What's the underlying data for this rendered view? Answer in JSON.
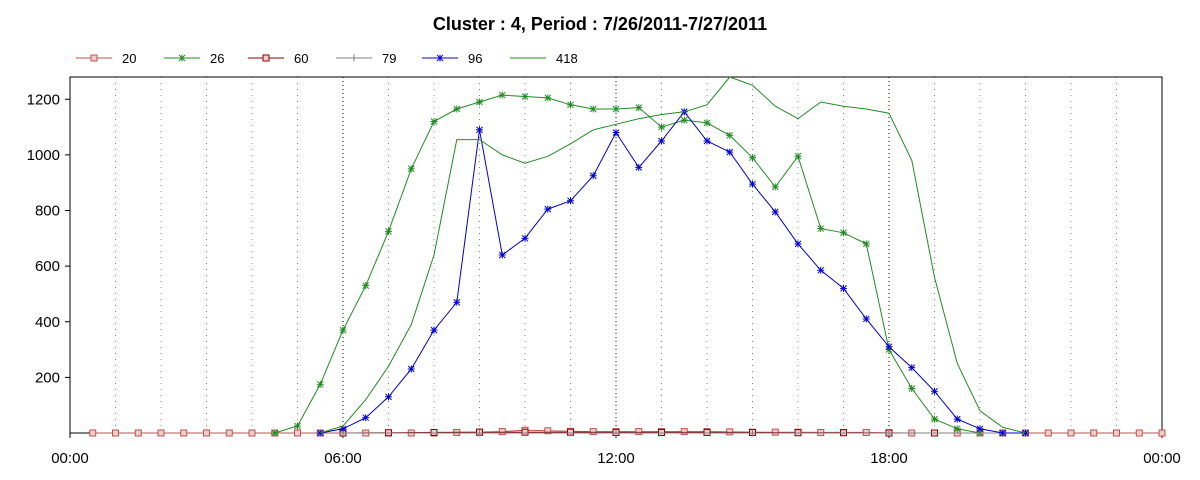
{
  "chart_data": {
    "type": "line",
    "title": "Cluster : 4, Period : 7/26/2011-7/27/2011",
    "xlabel": "",
    "ylabel": "",
    "x_tick_labels": [
      "00:00",
      "06:00",
      "12:00",
      "18:00",
      "00:00"
    ],
    "x_ticks_hours": [
      0,
      6,
      12,
      18,
      24
    ],
    "xlim_hours": [
      0,
      24
    ],
    "ylim": [
      0,
      1280
    ],
    "y_ticks": [
      200,
      400,
      600,
      800,
      1000,
      1200
    ],
    "grid": "vertical-dotted",
    "legend_position": "top-left",
    "series": [
      {
        "name": "20",
        "color": "#c0504d",
        "marker": "square",
        "x": [
          "00:30",
          "01:00",
          "01:30",
          "02:00",
          "02:30",
          "03:00",
          "03:30",
          "04:00",
          "04:30",
          "05:00",
          "05:30",
          "06:00",
          "06:30",
          "07:00",
          "07:30",
          "08:00",
          "08:30",
          "09:00",
          "09:30",
          "10:00",
          "10:30",
          "11:00",
          "11:30",
          "12:00",
          "12:30",
          "13:00",
          "13:30",
          "14:00",
          "14:30",
          "15:00",
          "15:30",
          "16:00",
          "16:30",
          "17:00",
          "17:30",
          "18:00",
          "18:30",
          "19:00",
          "19:30",
          "20:00",
          "20:30",
          "21:00",
          "21:30",
          "22:00",
          "22:30",
          "23:00",
          "23:30",
          "24:00"
        ],
        "values": [
          0,
          0,
          0,
          0,
          0,
          0,
          0,
          0,
          0,
          0,
          0,
          0,
          0,
          0,
          0,
          0,
          2,
          3,
          5,
          10,
          8,
          6,
          5,
          5,
          5,
          5,
          5,
          5,
          4,
          3,
          3,
          3,
          2,
          2,
          2,
          1,
          0,
          0,
          0,
          0,
          0,
          0,
          0,
          0,
          0,
          0,
          0,
          0
        ]
      },
      {
        "name": "26",
        "color": "#228b22",
        "marker": "star",
        "x": [
          "04:30",
          "05:00",
          "05:30",
          "06:00",
          "06:30",
          "07:00",
          "07:30",
          "08:00",
          "08:30",
          "09:00",
          "09:30",
          "10:00",
          "10:30",
          "11:00",
          "11:30",
          "12:00",
          "12:30",
          "13:00",
          "13:30",
          "14:00",
          "14:30",
          "15:00",
          "15:30",
          "16:00",
          "16:30",
          "17:00",
          "17:30",
          "18:00",
          "18:30",
          "19:00",
          "19:30",
          "20:00",
          "20:30",
          "21:00"
        ],
        "values": [
          0,
          25,
          175,
          370,
          530,
          725,
          950,
          1120,
          1165,
          1190,
          1215,
          1210,
          1205,
          1180,
          1165,
          1165,
          1170,
          1100,
          1125,
          1115,
          1070,
          990,
          885,
          995,
          735,
          720,
          680,
          300,
          160,
          50,
          15,
          0,
          0,
          0
        ]
      },
      {
        "name": "60",
        "color": "#8b0000",
        "marker": "square",
        "x": [
          "06:00",
          "07:00",
          "08:00",
          "09:00",
          "10:00",
          "11:00",
          "12:00",
          "13:00",
          "14:00",
          "15:00",
          "16:00",
          "17:00",
          "18:00",
          "19:00"
        ],
        "values": [
          0,
          1,
          2,
          3,
          3,
          3,
          2,
          2,
          2,
          2,
          1,
          1,
          0,
          0
        ]
      },
      {
        "name": "79",
        "color": "#808080",
        "marker": "plus",
        "x": [
          "06:00",
          "09:00",
          "12:00",
          "15:00",
          "18:00",
          "21:00"
        ],
        "values": [
          0,
          0,
          0,
          0,
          0,
          0
        ]
      },
      {
        "name": "96",
        "color": "#0000cd",
        "marker": "star",
        "x": [
          "05:30",
          "06:00",
          "06:30",
          "07:00",
          "07:30",
          "08:00",
          "08:30",
          "09:00",
          "09:30",
          "10:00",
          "10:30",
          "11:00",
          "11:30",
          "12:00",
          "12:30",
          "13:00",
          "13:30",
          "14:00",
          "14:30",
          "15:00",
          "15:30",
          "16:00",
          "16:30",
          "17:00",
          "17:30",
          "18:00",
          "18:30",
          "19:00",
          "19:30",
          "20:00",
          "20:30",
          "21:00"
        ],
        "values": [
          0,
          15,
          55,
          130,
          230,
          370,
          470,
          1090,
          640,
          700,
          805,
          835,
          925,
          1080,
          955,
          1050,
          1155,
          1050,
          1010,
          895,
          795,
          680,
          585,
          520,
          410,
          310,
          235,
          150,
          50,
          15,
          0,
          0
        ]
      },
      {
        "name": "418",
        "color": "#228b22",
        "marker": "none",
        "x": [
          "05:30",
          "06:00",
          "06:30",
          "07:00",
          "07:30",
          "08:00",
          "08:30",
          "09:00",
          "09:30",
          "10:00",
          "10:30",
          "11:00",
          "11:30",
          "12:00",
          "12:30",
          "13:00",
          "13:30",
          "14:00",
          "14:30",
          "15:00",
          "15:30",
          "16:00",
          "16:30",
          "17:00",
          "17:30",
          "18:00",
          "18:30",
          "19:00",
          "19:30",
          "20:00",
          "20:30",
          "21:00"
        ],
        "values": [
          0,
          25,
          120,
          240,
          390,
          640,
          1055,
          1055,
          1000,
          970,
          995,
          1040,
          1090,
          1110,
          1130,
          1145,
          1155,
          1180,
          1280,
          1250,
          1175,
          1130,
          1190,
          1175,
          1165,
          1150,
          980,
          560,
          250,
          80,
          20,
          0
        ]
      }
    ]
  }
}
